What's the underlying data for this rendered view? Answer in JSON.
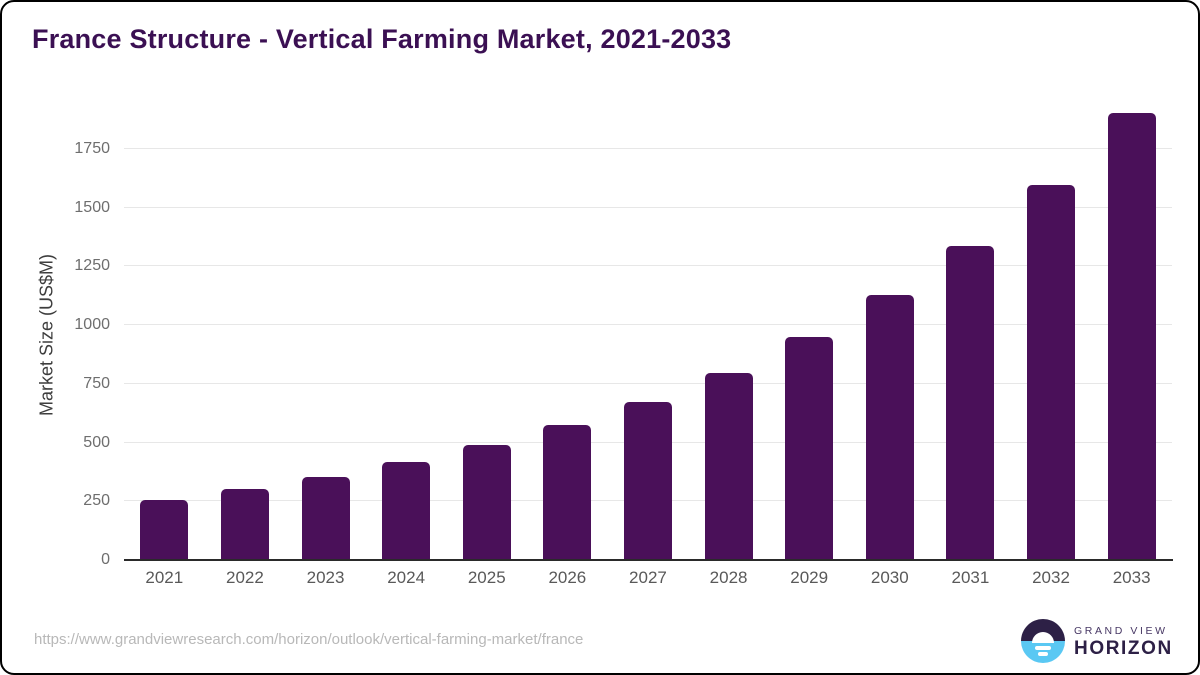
{
  "title": "France Structure - Vertical Farming Market, 2021-2033",
  "chart_data": {
    "type": "bar",
    "title": "France Structure - Vertical Farming Market, 2021-2033",
    "categories": [
      "2021",
      "2022",
      "2023",
      "2024",
      "2025",
      "2026",
      "2027",
      "2028",
      "2029",
      "2030",
      "2031",
      "2032",
      "2033"
    ],
    "values": [
      257,
      301,
      352,
      417,
      491,
      575,
      673,
      798,
      948,
      1127,
      1337,
      1595,
      1903
    ],
    "xlabel": "",
    "ylabel": "Market Size (US$M)",
    "ylim": [
      0,
      1950
    ],
    "yticks": [
      0,
      250,
      500,
      750,
      1000,
      1250,
      1500,
      1750
    ],
    "grid": true,
    "legend": "none",
    "bar_color": "#4a1059"
  },
  "colors": {
    "title": "#3b1053",
    "bar": "#4a1059",
    "gridline": "#e7e7e7",
    "axis_line": "#2a2a2a",
    "tick_text": "#6e6e6e",
    "xlabel_text": "#595959",
    "url_text": "#b8b8b8",
    "logo_dark": "#2d2046",
    "logo_blue": "#5ac8f3"
  },
  "footer": {
    "source_url": "https://www.grandviewresearch.com/horizon/outlook/vertical-farming-market/france",
    "logo": {
      "line1": "GRAND VIEW",
      "line2": "HORIZON"
    }
  }
}
